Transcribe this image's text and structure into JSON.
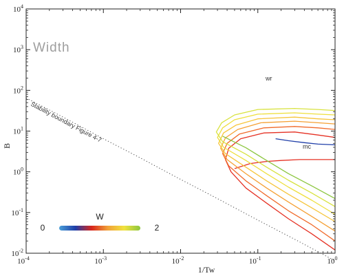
{
  "chart_data": {
    "type": "line",
    "title": "Width",
    "xlabel": "1/Tw",
    "ylabel": "B",
    "xscale": "log",
    "yscale": "log",
    "xlim": [
      0.0001,
      1
    ],
    "ylim": [
      0.01,
      10000
    ],
    "x_ticks": [
      {
        "base": "10",
        "exp": "-4"
      },
      {
        "base": "10",
        "exp": "-3"
      },
      {
        "base": "10",
        "exp": "-2"
      },
      {
        "base": "10",
        "exp": "-1"
      },
      {
        "base": "10",
        "exp": "0"
      }
    ],
    "y_ticks": [
      {
        "base": "10",
        "exp": "-2"
      },
      {
        "base": "10",
        "exp": "-1"
      },
      {
        "base": "10",
        "exp": "0"
      },
      {
        "base": "10",
        "exp": "1"
      },
      {
        "base": "10",
        "exp": "2"
      },
      {
        "base": "10",
        "exp": "3"
      },
      {
        "base": "10",
        "exp": "4"
      }
    ],
    "grid": false,
    "annotations": [
      {
        "text": "Stability boundary Figure 4-7",
        "x": 0.0001,
        "y": 40
      },
      {
        "text": "wr",
        "x": 0.11,
        "y": 45
      },
      {
        "text": "mc",
        "x": 0.25,
        "y": 3.5
      }
    ],
    "stability_boundary": {
      "x": [
        0.0001,
        0.0003,
        0.001,
        0.003,
        0.01,
        0.03,
        0.1,
        0.3,
        1
      ],
      "y": [
        65,
        22,
        6.5,
        2.2,
        0.65,
        0.22,
        0.065,
        0.022,
        0.0065
      ]
    },
    "contour_series": [
      {
        "color": "#e53023",
        "x": [
          0.05,
          0.08,
          0.13,
          0.2,
          0.35,
          0.6,
          1.0
        ],
        "y": [
          1.2,
          1.6,
          1.8,
          1.9,
          2.0,
          2.0,
          2.0
        ]
      },
      {
        "color": "#e53023",
        "x": [
          1.0,
          0.5,
          0.25,
          0.13,
          0.07,
          0.045,
          0.038,
          0.042,
          0.06,
          0.12,
          0.3,
          0.6,
          1.0
        ],
        "y": [
          0.012,
          0.03,
          0.07,
          0.17,
          0.4,
          1.0,
          2.0,
          3.8,
          6.5,
          9.0,
          9.5,
          8.0,
          7.0
        ]
      },
      {
        "color": "#f06a2a",
        "x": [
          1.0,
          0.5,
          0.25,
          0.13,
          0.07,
          0.042,
          0.035,
          0.04,
          0.058,
          0.12,
          0.3,
          0.6,
          1.0
        ],
        "y": [
          0.02,
          0.05,
          0.11,
          0.26,
          0.6,
          1.4,
          2.8,
          5.0,
          8.5,
          12.0,
          13.0,
          12.0,
          11.0
        ]
      },
      {
        "color": "#f5a033",
        "x": [
          1.0,
          0.5,
          0.25,
          0.13,
          0.07,
          0.04,
          0.033,
          0.038,
          0.055,
          0.11,
          0.3,
          0.6,
          1.0
        ],
        "y": [
          0.035,
          0.08,
          0.18,
          0.4,
          0.9,
          2.0,
          3.8,
          6.8,
          11.0,
          16.0,
          17.5,
          16.0,
          15.0
        ]
      },
      {
        "color": "#f6c53a",
        "x": [
          1.0,
          0.5,
          0.25,
          0.13,
          0.07,
          0.038,
          0.031,
          0.036,
          0.052,
          0.1,
          0.3,
          0.6,
          1.0
        ],
        "y": [
          0.06,
          0.13,
          0.28,
          0.6,
          1.3,
          2.8,
          5.0,
          9.0,
          14.0,
          20.0,
          22.0,
          20.0,
          19.0
        ]
      },
      {
        "color": "#eedf3c",
        "x": [
          1.0,
          0.5,
          0.25,
          0.13,
          0.07,
          0.036,
          0.03,
          0.035,
          0.05,
          0.1,
          0.3,
          0.6,
          1.0
        ],
        "y": [
          0.09,
          0.2,
          0.42,
          0.9,
          1.9,
          4.0,
          7.0,
          12.0,
          19.0,
          26.0,
          28.0,
          26.0,
          25.0
        ]
      },
      {
        "color": "#d8e23e",
        "x": [
          1.0,
          0.5,
          0.25,
          0.13,
          0.07,
          0.035,
          0.029,
          0.034,
          0.05,
          0.1,
          0.3,
          0.6,
          1.0
        ],
        "y": [
          0.14,
          0.3,
          0.62,
          1.3,
          2.7,
          5.5,
          9.5,
          16.0,
          25.0,
          34.0,
          36.0,
          34.0,
          32.0
        ]
      },
      {
        "color": "#8cc63f",
        "x": [
          1.0,
          0.5,
          0.25,
          0.13,
          0.07,
          0.035
        ],
        "y": [
          0.22,
          0.45,
          0.9,
          1.9,
          3.9,
          7.5
        ]
      },
      {
        "color": "#1f3ea8",
        "x": [
          0.17,
          0.25,
          0.4,
          0.6,
          1.0
        ],
        "y": [
          6.5,
          5.8,
          5.2,
          4.8,
          4.6
        ]
      }
    ],
    "colorbar": {
      "label": "W",
      "min_label": "0",
      "max_label": "2",
      "colors": [
        "#4a9fd8",
        "#1f3ea8",
        "#d8261c",
        "#f1a138",
        "#f1e23e",
        "#8cc63f"
      ]
    }
  }
}
